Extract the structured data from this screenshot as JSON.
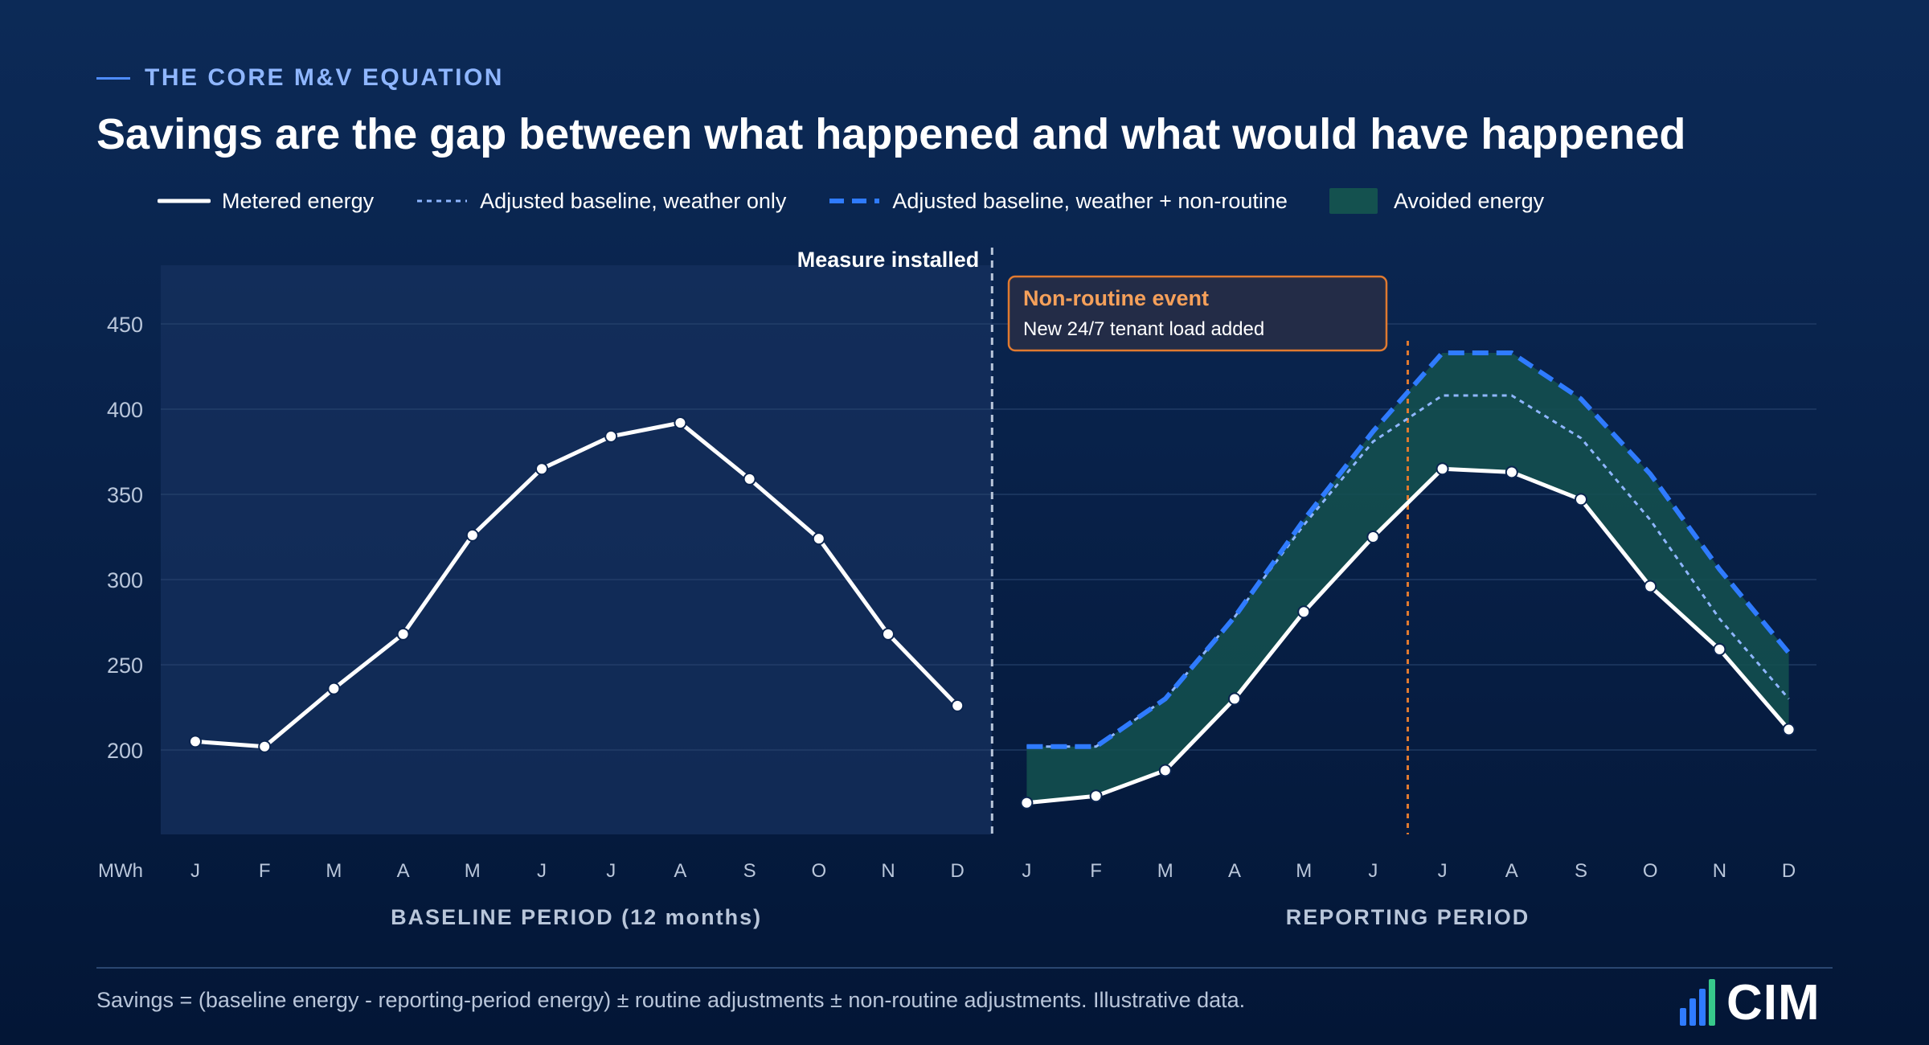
{
  "eyebrow": "THE CORE M&V EQUATION",
  "title": "Savings are the gap between what happened and what would have happened",
  "legend": {
    "metered": "Metered energy",
    "adj_weather": "Adjusted baseline, weather only",
    "adj_weather_nonroutine": "Adjusted baseline, weather + non-routine",
    "avoided": "Avoided energy"
  },
  "footnote": "Savings = (baseline energy - reporting-period energy) ± routine adjustments ± non-routine adjustments. Illustrative data.",
  "logo_text": "CIM",
  "colors": {
    "metered": "#ffffff",
    "adj_weather": "#8fb6ff",
    "adj_weather_nonroutine": "#2f7bff",
    "avoided": "#14514f",
    "event": "#e07a30",
    "event_title": "#f5a05a"
  },
  "chart_data": {
    "type": "line",
    "y_unit_label": "MWh",
    "y_ticks": [
      200,
      250,
      300,
      350,
      400,
      450
    ],
    "ylim": [
      150,
      485
    ],
    "months": [
      "J",
      "F",
      "M",
      "A",
      "M",
      "J",
      "J",
      "A",
      "S",
      "O",
      "N",
      "D"
    ],
    "baseline_period": {
      "label": "BASELINE PERIOD (12 months)",
      "metered": [
        205,
        202,
        236,
        268,
        326,
        365,
        384,
        392,
        359,
        324,
        268,
        226
      ]
    },
    "reporting_period": {
      "label": "REPORTING PERIOD",
      "metered": [
        169,
        173,
        188,
        230,
        281,
        325,
        365,
        363,
        347,
        296,
        259,
        212
      ],
      "adjusted_weather_only": [
        202,
        202,
        230,
        278,
        332,
        381,
        408,
        408,
        383,
        335,
        277,
        230
      ],
      "adjusted_weather_nonroutine": [
        202,
        202,
        230,
        278,
        335,
        387,
        433,
        433,
        406,
        362,
        306,
        257
      ]
    },
    "measure_label": "Measure installed",
    "event": {
      "title": "Non-routine event",
      "subtitle": "New 24/7 tenant load added",
      "between_reporting_months": [
        5,
        6
      ]
    }
  }
}
